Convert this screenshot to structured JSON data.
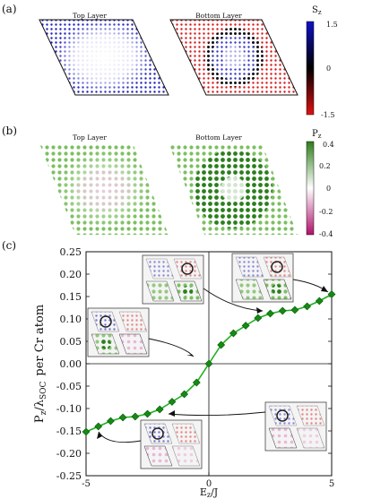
{
  "panels": {
    "a": {
      "tag": "(a)",
      "left_title": "Top Layer",
      "right_title": "Bottom Layer",
      "colorbar": {
        "label": "S",
        "label_sub": "z",
        "ticks": [
          "1.5",
          "0",
          "-1.5"
        ],
        "colors": [
          "#1010c8",
          "#000000",
          "#e01010"
        ]
      }
    },
    "b": {
      "tag": "(b)",
      "left_title": "Top Layer",
      "right_title": "Bottom Layer",
      "colorbar": {
        "label": "P",
        "label_sub": "z",
        "ticks": [
          "0.4",
          "0.2",
          "0",
          "-0.2",
          "-0.4"
        ],
        "colors": [
          "#2e7d1a",
          "#ffffff",
          "#b0106a"
        ]
      }
    },
    "c": {
      "tag": "(c)"
    }
  },
  "chart_data": {
    "type": "line",
    "xlabel": "E",
    "xlabel_sub": "z",
    "xlabel_suffix": "/J",
    "ylabel_main": "P",
    "ylabel_sub": "z",
    "ylabel_mid": "/λ",
    "ylabel_sub2": "SOC",
    "ylabel_tail": "per Cr atom",
    "xlim": [
      -5,
      5
    ],
    "ylim": [
      -0.25,
      0.25
    ],
    "xticks": [
      "-5",
      "0",
      "5"
    ],
    "yticks": [
      "0.25",
      "0.20",
      "0.15",
      "0.10",
      "0.05",
      "0.00",
      "-0.05",
      "-0.10",
      "-0.15",
      "-0.20",
      "-0.25"
    ],
    "line_color": "#1db01d",
    "marker_color": "#158a15",
    "grid": false,
    "series": [
      {
        "x": [
          -5,
          -4.5,
          -4,
          -3.5,
          -3,
          -2.5,
          -2,
          -1.5,
          -1,
          -0.5,
          0,
          0.5,
          1,
          1.5,
          2,
          2.5,
          3,
          3.5,
          4,
          4.5,
          5
        ],
        "y": [
          -0.152,
          -0.14,
          -0.128,
          -0.12,
          -0.118,
          -0.112,
          -0.102,
          -0.085,
          -0.068,
          -0.042,
          0.0,
          0.042,
          0.068,
          0.085,
          0.102,
          0.112,
          0.118,
          0.12,
          0.128,
          0.14,
          0.155
        ]
      }
    ]
  }
}
